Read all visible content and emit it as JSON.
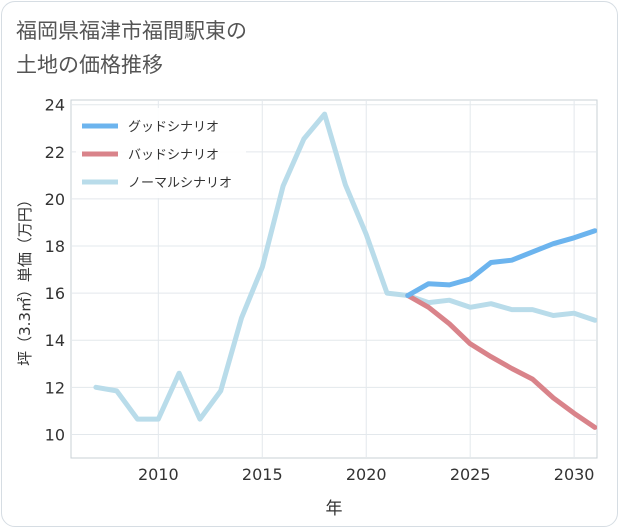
{
  "title_line1": "福岡県福津市福間駅東の",
  "title_line2": "土地の価格推移",
  "chart_data": {
    "type": "line",
    "xlabel": "年",
    "ylabel": "坪（3.3㎡）単価（万円）",
    "xlim": [
      2005.8,
      2031.1
    ],
    "ylim": [
      9.0,
      24.2
    ],
    "xticks": [
      2010,
      2015,
      2020,
      2025,
      2030
    ],
    "yticks": [
      10,
      12,
      14,
      16,
      18,
      20,
      22,
      24
    ],
    "grid": true,
    "legend_position": "top-left",
    "series": [
      {
        "name": "グッドシナリオ",
        "color": "#6cb4ee",
        "x": [
          2022,
          2023,
          2024,
          2025,
          2026,
          2027,
          2028,
          2029,
          2030,
          2031
        ],
        "values": [
          15.9,
          16.4,
          16.35,
          16.6,
          17.3,
          17.4,
          17.75,
          18.1,
          18.35,
          18.65
        ]
      },
      {
        "name": "バッドシナリオ",
        "color": "#d9838a",
        "x": [
          2022,
          2023,
          2024,
          2025,
          2026,
          2027,
          2028,
          2029,
          2030,
          2031
        ],
        "values": [
          15.9,
          15.4,
          14.7,
          13.85,
          13.3,
          12.8,
          12.35,
          11.55,
          10.9,
          10.3
        ]
      },
      {
        "name": "ノーマルシナリオ",
        "color": "#b9dcea",
        "x": [
          2007,
          2008,
          2009,
          2010,
          2011,
          2012,
          2013,
          2014,
          2015,
          2016,
          2017,
          2018,
          2019,
          2020,
          2021,
          2022,
          2023,
          2024,
          2025,
          2026,
          2027,
          2028,
          2029,
          2030,
          2031
        ],
        "values": [
          12.0,
          11.85,
          10.65,
          10.65,
          12.6,
          10.65,
          11.85,
          14.95,
          17.1,
          20.55,
          22.55,
          23.6,
          20.6,
          18.5,
          16.0,
          15.9,
          15.6,
          15.7,
          15.4,
          15.55,
          15.3,
          15.3,
          15.05,
          15.15,
          14.85
        ]
      }
    ]
  }
}
